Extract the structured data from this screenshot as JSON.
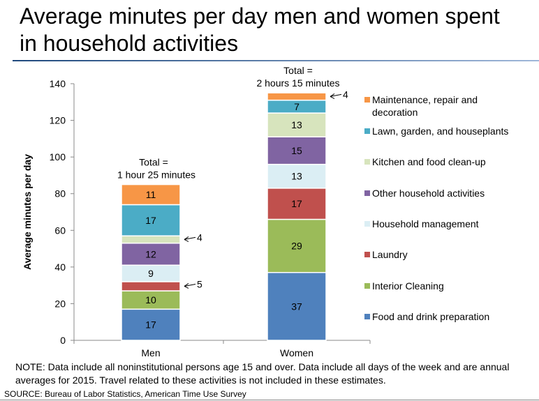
{
  "colors": {
    "Maintenance, repair and decoration": "#f79646",
    "Lawn, garden, and houseplants": "#4bacc6",
    "Kitchen and food clean-up": "#d7e4bd",
    "Other household activities": "#8064a2",
    "Household management": "#dbeef4",
    "Laundry": "#c0504d",
    "Interior Cleaning": "#9bbb59",
    "Food and drink preparation": "#4f81bd",
    "title_rule": "#1f497d"
  },
  "chart_data": {
    "type": "bar",
    "stacked": true,
    "title": "Average minutes per day men and women spent in household activities",
    "ylabel": "Average minutes per day",
    "xlabel": "",
    "categories": [
      "Men",
      "Women"
    ],
    "ylim": [
      0,
      140
    ],
    "yticks": [
      0,
      20,
      40,
      60,
      80,
      100,
      120,
      140
    ],
    "grid": false,
    "legend_position": "right",
    "series": [
      {
        "name": "Food and drink preparation",
        "values": [
          17,
          37
        ]
      },
      {
        "name": "Interior Cleaning",
        "values": [
          10,
          29
        ]
      },
      {
        "name": "Laundry",
        "values": [
          5,
          17
        ]
      },
      {
        "name": "Household management",
        "values": [
          9,
          13
        ]
      },
      {
        "name": "Other household activities",
        "values": [
          12,
          15
        ]
      },
      {
        "name": "Kitchen and food clean-up",
        "values": [
          4,
          13
        ]
      },
      {
        "name": "Lawn, garden, and houseplants",
        "values": [
          17,
          7
        ]
      },
      {
        "name": "Maintenance, repair and decoration",
        "values": [
          11,
          4
        ]
      }
    ],
    "legend": [
      "Maintenance, repair and decoration",
      "Lawn, garden, and houseplants",
      "Kitchen and food clean-up",
      "Other household activities",
      "Household management",
      "Laundry",
      "Interior Cleaning",
      "Food and drink preparation"
    ],
    "total_labels": [
      [
        "Total =",
        "1 hour  25 minutes"
      ],
      [
        "Total =",
        "2 hours 15 minutes"
      ]
    ],
    "outside_annotations": [
      {
        "category": "Men",
        "series": "Laundry",
        "text": "5"
      },
      {
        "category": "Men",
        "series": "Kitchen and food clean-up",
        "text": "4"
      },
      {
        "category": "Women",
        "series": "Maintenance, repair and decoration",
        "text": "4"
      }
    ]
  },
  "note": "NOTE: Data include all noninstitutional persons age 15 and over. Data include all days of the week and are annual averages for 2015. Travel related to these activities is not included in these estimates.",
  "source": "SOURCE: Bureau of Labor Statistics, American Time Use Survey"
}
